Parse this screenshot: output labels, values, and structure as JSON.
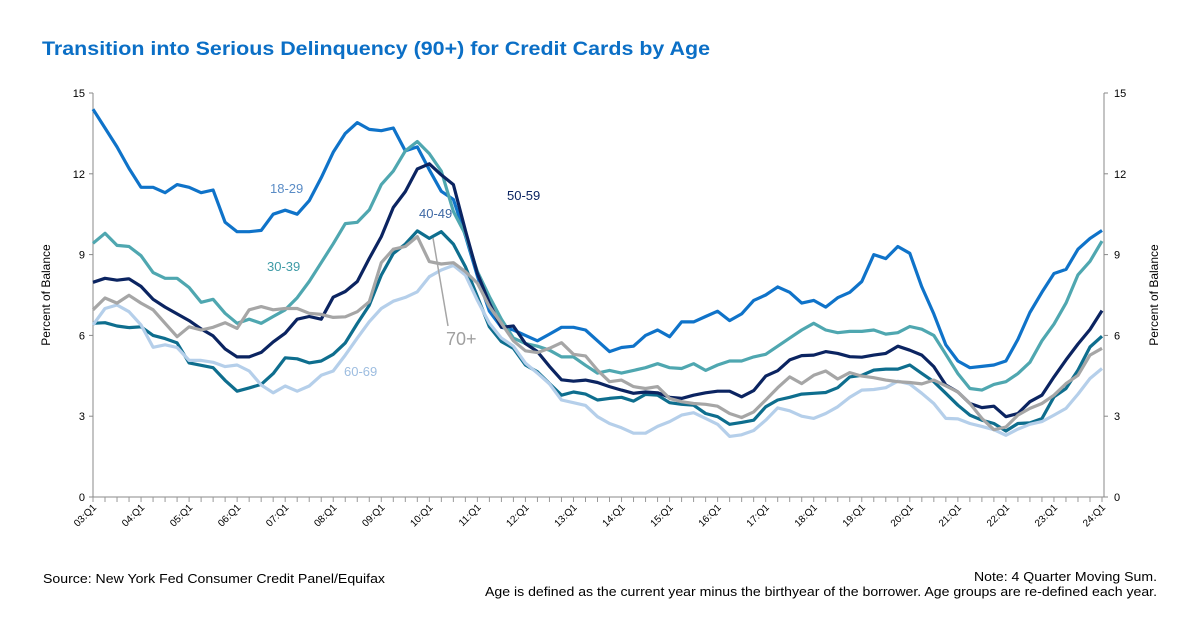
{
  "chart_data": {
    "type": "line",
    "title": "Transition into Serious Delinquency (90+) for Credit Cards by Age",
    "ylabel": "Percent of Balance",
    "ylabel_right": "Percent of Balance",
    "xlabel": "",
    "ylim": [
      0,
      15
    ],
    "yticks": [
      "0",
      "3",
      "6",
      "9",
      "12",
      "15"
    ],
    "yticks_right": [
      "0",
      "3",
      "6",
      "9",
      "12",
      "15"
    ],
    "x_tick_labels": [
      "03:Q1",
      "04:Q1",
      "05:Q1",
      "06:Q1",
      "07:Q1",
      "08:Q1",
      "09:Q1",
      "10:Q1",
      "11:Q1",
      "12:Q1",
      "13:Q1",
      "14:Q1",
      "15:Q1",
      "16:Q1",
      "17:Q1",
      "18:Q1",
      "19:Q1",
      "20:Q1",
      "21:Q1",
      "22:Q1",
      "23:Q1",
      "24:Q1"
    ],
    "quarters_per_tick": 4,
    "grid": false,
    "legend": "inline labels",
    "series": [
      {
        "name": "18-29",
        "color": "#0F73C9",
        "label_color": "#5A8CC6",
        "values": [
          14.4,
          13.7,
          13.0,
          12.2,
          11.5,
          11.5,
          11.3,
          11.6,
          11.5,
          11.3,
          11.4,
          10.2,
          9.85,
          9.85,
          9.9,
          10.5,
          10.65,
          10.5,
          11.0,
          11.85,
          12.8,
          13.5,
          13.9,
          13.65,
          13.6,
          13.7,
          12.85,
          13.0,
          12.15,
          11.35,
          11.05,
          9.7,
          8.2,
          6.9,
          6.3,
          6.2,
          6.0,
          5.8,
          6.05,
          6.3,
          6.3,
          6.2,
          5.8,
          5.4,
          5.55,
          5.6,
          6.0,
          6.2,
          5.95,
          6.5,
          6.5,
          6.7,
          6.9,
          6.55,
          6.8,
          7.3,
          7.5,
          7.8,
          7.6,
          7.2,
          7.3,
          7.05,
          7.4,
          7.6,
          8.0,
          9.0,
          8.85,
          9.3,
          9.05,
          7.8,
          6.8,
          5.65,
          5.05,
          4.8,
          4.85,
          4.9,
          5.05,
          5.85,
          6.85,
          7.6,
          8.3,
          8.45,
          9.2,
          9.6,
          9.9
        ]
      },
      {
        "name": "30-39",
        "color": "#4FA7B0",
        "label_color": "#3F9BA6",
        "values": [
          9.42,
          9.79,
          9.34,
          9.3,
          8.96,
          8.33,
          8.12,
          8.12,
          7.78,
          7.23,
          7.34,
          6.82,
          6.45,
          6.6,
          6.45,
          6.7,
          6.95,
          7.4,
          8.0,
          8.7,
          9.4,
          10.15,
          10.2,
          10.66,
          11.6,
          12.1,
          12.85,
          13.2,
          12.75,
          12.1,
          10.6,
          9.75,
          8.37,
          7.44,
          6.6,
          5.9,
          5.7,
          5.6,
          5.45,
          5.2,
          5.2,
          4.89,
          4.6,
          4.7,
          4.6,
          4.7,
          4.8,
          4.95,
          4.8,
          4.77,
          4.95,
          4.7,
          4.9,
          5.05,
          5.05,
          5.2,
          5.3,
          5.6,
          5.9,
          6.2,
          6.45,
          6.2,
          6.1,
          6.15,
          6.15,
          6.2,
          6.05,
          6.1,
          6.33,
          6.23,
          6.0,
          5.3,
          4.58,
          4.03,
          3.97,
          4.18,
          4.28,
          4.58,
          5.0,
          5.8,
          6.42,
          7.2,
          8.25,
          8.75,
          9.5
        ]
      },
      {
        "name": "40-49",
        "color": "#0E6E8E",
        "label_color": "#3E68A4",
        "values": [
          6.45,
          6.47,
          6.35,
          6.29,
          6.32,
          6.0,
          5.88,
          5.72,
          4.98,
          4.89,
          4.8,
          4.33,
          3.93,
          4.05,
          4.18,
          4.58,
          5.17,
          5.13,
          4.98,
          5.05,
          5.3,
          5.72,
          6.44,
          7.12,
          8.24,
          9.04,
          9.39,
          9.88,
          9.6,
          9.85,
          9.39,
          8.55,
          7.44,
          6.32,
          5.77,
          5.52,
          4.9,
          4.65,
          4.21,
          3.78,
          3.9,
          3.82,
          3.6,
          3.66,
          3.7,
          3.56,
          3.81,
          3.78,
          3.5,
          3.44,
          3.41,
          3.1,
          2.98,
          2.7,
          2.77,
          2.85,
          3.35,
          3.6,
          3.7,
          3.82,
          3.85,
          3.88,
          4.06,
          4.46,
          4.52,
          4.71,
          4.75,
          4.75,
          4.9,
          4.59,
          4.28,
          3.85,
          3.41,
          3.04,
          2.85,
          2.73,
          2.45,
          2.73,
          2.75,
          2.91,
          3.72,
          4.03,
          4.71,
          5.57,
          5.97
        ]
      },
      {
        "name": "50-59",
        "color": "#0B2461",
        "label_color": "#0B2461",
        "values": [
          7.97,
          8.12,
          8.05,
          8.1,
          7.82,
          7.34,
          7.05,
          6.8,
          6.55,
          6.24,
          5.98,
          5.5,
          5.2,
          5.2,
          5.37,
          5.76,
          6.08,
          6.6,
          6.7,
          6.6,
          7.42,
          7.63,
          8.0,
          8.86,
          9.67,
          10.75,
          11.34,
          12.18,
          12.37,
          11.96,
          11.6,
          9.9,
          8.3,
          7.2,
          6.3,
          6.35,
          5.7,
          5.4,
          4.85,
          4.35,
          4.3,
          4.34,
          4.25,
          4.1,
          3.97,
          3.85,
          3.9,
          3.87,
          3.7,
          3.66,
          3.78,
          3.87,
          3.93,
          3.93,
          3.72,
          3.95,
          4.49,
          4.69,
          5.09,
          5.25,
          5.27,
          5.4,
          5.33,
          5.21,
          5.19,
          5.27,
          5.33,
          5.6,
          5.45,
          5.27,
          4.84,
          4.16,
          3.9,
          3.47,
          3.32,
          3.37,
          2.98,
          3.1,
          3.54,
          3.78,
          4.46,
          5.09,
          5.68,
          6.22,
          6.92
        ]
      },
      {
        "name": "60-69",
        "color": "#B5CFEA",
        "label_color": "#9DBDE0",
        "values": [
          6.39,
          7.0,
          7.13,
          6.88,
          6.39,
          5.56,
          5.65,
          5.55,
          5.07,
          5.07,
          5.0,
          4.84,
          4.9,
          4.68,
          4.16,
          3.87,
          4.12,
          3.93,
          4.12,
          4.52,
          4.68,
          5.27,
          5.9,
          6.51,
          7.0,
          7.27,
          7.41,
          7.62,
          8.18,
          8.43,
          8.6,
          8.24,
          7.3,
          6.45,
          5.9,
          5.6,
          4.97,
          4.6,
          4.2,
          3.6,
          3.5,
          3.4,
          2.98,
          2.73,
          2.57,
          2.37,
          2.37,
          2.62,
          2.8,
          3.04,
          3.13,
          2.92,
          2.7,
          2.25,
          2.31,
          2.47,
          2.85,
          3.31,
          3.2,
          3.0,
          2.92,
          3.1,
          3.35,
          3.7,
          3.97,
          3.99,
          4.06,
          4.3,
          4.19,
          3.85,
          3.47,
          2.92,
          2.9,
          2.73,
          2.62,
          2.5,
          2.29,
          2.52,
          2.7,
          2.8,
          3.04,
          3.29,
          3.82,
          4.4,
          4.77
        ]
      },
      {
        "name": "70+",
        "color": "#A6A6A6",
        "label_color": "#A0A0A0",
        "values": [
          6.95,
          7.39,
          7.2,
          7.49,
          7.2,
          6.95,
          6.45,
          5.95,
          6.32,
          6.2,
          6.3,
          6.47,
          6.26,
          6.95,
          7.07,
          6.95,
          7.0,
          7.0,
          6.82,
          6.78,
          6.67,
          6.69,
          6.88,
          7.25,
          8.7,
          9.2,
          9.3,
          9.67,
          8.74,
          8.65,
          8.7,
          8.37,
          7.94,
          7.07,
          6.45,
          5.8,
          5.43,
          5.36,
          5.52,
          5.73,
          5.3,
          5.24,
          4.71,
          4.28,
          4.34,
          4.1,
          4.03,
          4.1,
          3.66,
          3.54,
          3.47,
          3.44,
          3.37,
          3.1,
          2.95,
          3.16,
          3.6,
          4.06,
          4.46,
          4.21,
          4.52,
          4.68,
          4.38,
          4.62,
          4.49,
          4.43,
          4.34,
          4.28,
          4.25,
          4.2,
          4.34,
          4.13,
          3.9,
          3.47,
          2.92,
          2.5,
          2.6,
          3.04,
          3.29,
          3.47,
          3.78,
          4.21,
          4.52,
          5.27,
          5.52
        ]
      }
    ]
  },
  "header": {
    "title": "Transition into Serious Delinquency (90+) for Credit Cards by Age",
    "title_color": "#0B6FC6"
  },
  "footer": {
    "source": "Source: New York Fed Consumer Credit Panel/Equifax",
    "note_1": "Note: 4 Quarter Moving Sum.",
    "note_2": "Age is defined as the current year minus the birthyear of the borrower. Age groups are re-defined each year."
  }
}
